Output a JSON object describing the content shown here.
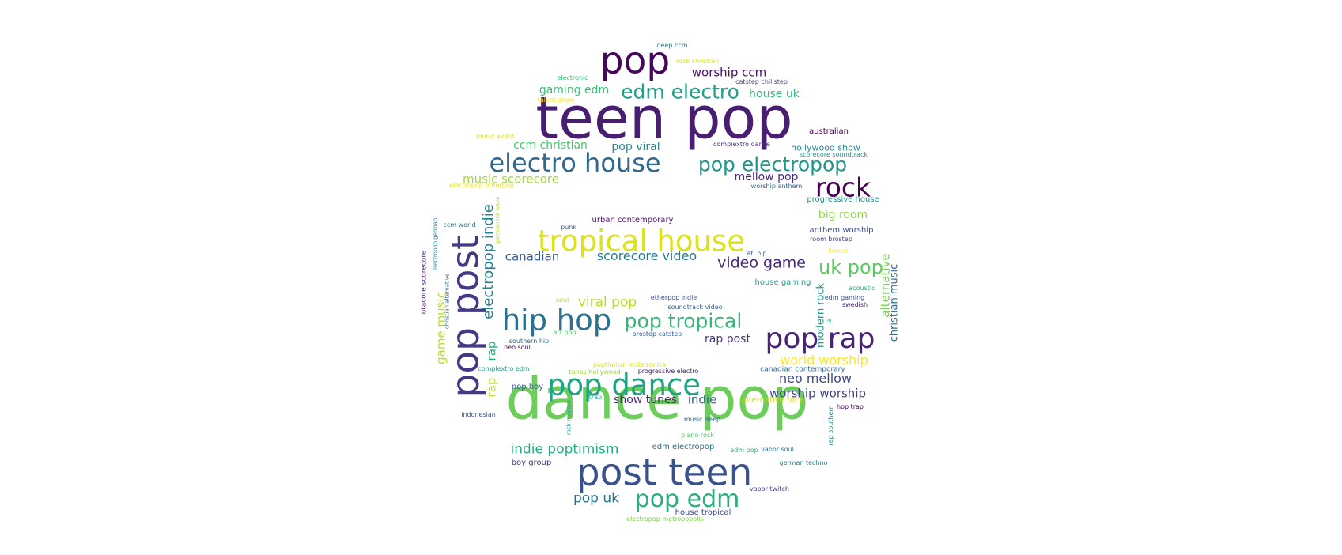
{
  "words": [
    {
      "text": "dance pop",
      "color": "#6ccd5a"
    },
    {
      "text": "teen pop",
      "color": "#481f70"
    },
    {
      "text": "post teen",
      "color": "#3b518b"
    },
    {
      "text": "pop post",
      "color": "#443983"
    },
    {
      "text": "tropical house",
      "color": "#dde318"
    },
    {
      "text": "hip hop",
      "color": "#2c718e"
    },
    {
      "text": "pop dance",
      "color": "#20a486"
    },
    {
      "text": "pop rap",
      "color": "#482475"
    },
    {
      "text": "electro house",
      "color": "#31688e"
    },
    {
      "text": "pop",
      "color": "#46085c"
    },
    {
      "text": "rock",
      "color": "#440154"
    },
    {
      "text": "pop edm",
      "color": "#28ae80"
    },
    {
      "text": "pop electropop",
      "color": "#1f978b"
    },
    {
      "text": "edm electro",
      "color": "#1fa088"
    },
    {
      "text": "pop tropical",
      "color": "#35b779"
    },
    {
      "text": "uk pop",
      "color": "#5ec962"
    },
    {
      "text": "electropop indie",
      "color": "#25848e"
    },
    {
      "text": "video game",
      "color": "#482878"
    },
    {
      "text": "scorecore video",
      "color": "#277f8e"
    },
    {
      "text": "indie poptimism",
      "color": "#27ad81"
    },
    {
      "text": "pop uk",
      "color": "#2d708e"
    },
    {
      "text": "viral pop",
      "color": "#b5de2b"
    },
    {
      "text": "canadian",
      "color": "#38588c"
    },
    {
      "text": "music scorecore",
      "color": "#a0da39"
    },
    {
      "text": "world worship",
      "color": "#fde725"
    },
    {
      "text": "neo mellow",
      "color": "#3e4989"
    },
    {
      "text": "worship worship",
      "color": "#414487"
    },
    {
      "text": "worship ccm",
      "color": "#471063"
    },
    {
      "text": "gaming edm",
      "color": "#3dbc74"
    },
    {
      "text": "ccm christian",
      "color": "#4ac16d"
    },
    {
      "text": "pop viral",
      "color": "#26828e"
    },
    {
      "text": "mellow pop",
      "color": "#472a7a"
    },
    {
      "text": "big room",
      "color": "#8fd744"
    },
    {
      "text": "show tunes",
      "color": "#482677"
    },
    {
      "text": "indie",
      "color": "#33638d"
    },
    {
      "text": "rap post",
      "color": "#463480"
    },
    {
      "text": "house uk",
      "color": "#35b779"
    },
    {
      "text": "game music",
      "color": "#b8de29"
    },
    {
      "text": "rap",
      "color": "#29af7f"
    },
    {
      "text": "rap",
      "color": "#c2df23"
    },
    {
      "text": "modern rock",
      "color": "#1e9b8a"
    },
    {
      "text": "alternative",
      "color": "#7ad151"
    },
    {
      "text": "christian music",
      "color": "#2e6e8e"
    },
    {
      "text": "hollywood show",
      "color": "#24868e"
    },
    {
      "text": "australian",
      "color": "#440154"
    },
    {
      "text": "anthem worship",
      "color": "#3b528b"
    },
    {
      "text": "progressive house",
      "color": "#21908d"
    },
    {
      "text": "house gaming",
      "color": "#1f9e89"
    },
    {
      "text": "urban contemporary",
      "color": "#481467"
    },
    {
      "text": "edm electropop",
      "color": "#2c728e"
    },
    {
      "text": "boy group",
      "color": "#45337d"
    },
    {
      "text": "house tropical",
      "color": "#3f4788"
    },
    {
      "text": "pop boy",
      "color": "#355f8d"
    },
    {
      "text": "alternative rock",
      "color": "#c8e020"
    },
    {
      "text": "canadian contemporary",
      "color": "#30698e"
    },
    {
      "text": "deep ccm",
      "color": "#2a788e"
    },
    {
      "text": "rock christian",
      "color": "#d8e219"
    },
    {
      "text": "electronic",
      "color": "#3aba76"
    },
    {
      "text": "catstep chillstep",
      "color": "#3f4889"
    },
    {
      "text": "talent show",
      "color": "#fde725"
    },
    {
      "text": "music world",
      "color": "#dde318"
    },
    {
      "text": "complextro dance",
      "color": "#46307e"
    },
    {
      "text": "scorecore soundtrack",
      "color": "#1f958b"
    },
    {
      "text": "electropop etherpop",
      "color": "#e5e419"
    },
    {
      "text": "worship anthem",
      "color": "#31688e"
    },
    {
      "text": "punk",
      "color": "#365d8d"
    },
    {
      "text": "ccm world",
      "color": "#2a788e"
    },
    {
      "text": "electropop german",
      "color": "#23898e"
    },
    {
      "text": "permanent wave",
      "color": "#a8db34"
    },
    {
      "text": "room brostep",
      "color": "#3e4a89"
    },
    {
      "text": "korean",
      "color": "#fde725"
    },
    {
      "text": "atl hip",
      "color": "#39568c"
    },
    {
      "text": "acoustic",
      "color": "#29af7f"
    },
    {
      "text": "edm gaming",
      "color": "#3a548c"
    },
    {
      "text": "swedish",
      "color": "#471365"
    },
    {
      "text": "la",
      "color": "#1fa188"
    },
    {
      "text": "soul",
      "color": "#addc30"
    },
    {
      "text": "etherpop indie",
      "color": "#3e4c8a"
    },
    {
      "text": "soundtrack video",
      "color": "#33638d"
    },
    {
      "text": "art pop",
      "color": "#50c46a"
    },
    {
      "text": "brostep catstep",
      "color": "#355f8d"
    },
    {
      "text": "southern hip",
      "color": "#2d708e"
    },
    {
      "text": "neo soul",
      "color": "#46075a"
    },
    {
      "text": "poptimism indietronica",
      "color": "#dae319"
    },
    {
      "text": "tunes hollywood",
      "color": "#9bd93c"
    },
    {
      "text": "progressive electro",
      "color": "#482173"
    },
    {
      "text": "complextro edm",
      "color": "#22a785"
    },
    {
      "text": "trap",
      "color": "#1f9a8a"
    },
    {
      "text": "hop trap",
      "color": "#440154"
    },
    {
      "text": "indonesian",
      "color": "#3b528b"
    },
    {
      "text": "rock modern",
      "color": "#1f9e89"
    },
    {
      "text": "music deep",
      "color": "#34608d"
    },
    {
      "text": "piano rock",
      "color": "#52c569"
    },
    {
      "text": "edm pop",
      "color": "#2ab07f"
    },
    {
      "text": "vapor soul",
      "color": "#2c728e"
    },
    {
      "text": "rap southern",
      "color": "#26828e"
    },
    {
      "text": "german techno",
      "color": "#25848e"
    },
    {
      "text": "vapor twitch",
      "color": "#3f4788"
    },
    {
      "text": "electropop metropopolis",
      "color": "#7ad151"
    },
    {
      "text": "otacore scorecore",
      "color": "#481c6e"
    },
    {
      "text": "christian alternative",
      "color": "#2f6c8e"
    }
  ]
}
